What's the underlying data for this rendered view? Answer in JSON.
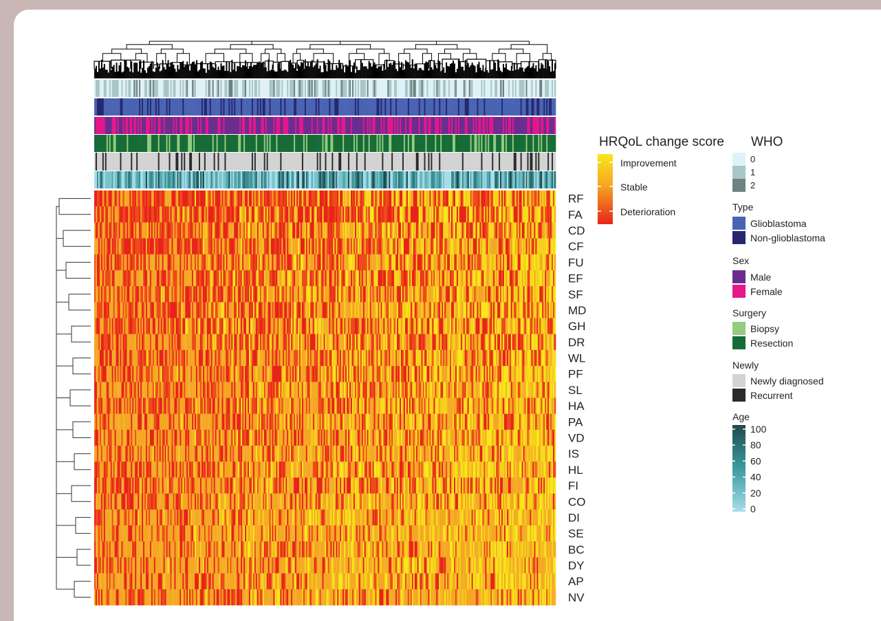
{
  "chart_data": {
    "type": "heatmap",
    "rows": [
      "RF",
      "FA",
      "CD",
      "CF",
      "FU",
      "EF",
      "SF",
      "MD",
      "GH",
      "DR",
      "WL",
      "PF",
      "SL",
      "HA",
      "PA",
      "VD",
      "IS",
      "HL",
      "FI",
      "CO",
      "DI",
      "SE",
      "BC",
      "DY",
      "AP",
      "NV"
    ],
    "n_columns": 340,
    "color_scale": {
      "title": "HRQoL change score",
      "labels": [
        "Improvement",
        "Stable",
        "Deterioration"
      ],
      "colors": [
        "#f8e71c",
        "#f5a623",
        "#e8231b"
      ]
    },
    "annotation_tracks": [
      "WHO",
      "Type",
      "Sex",
      "Surgery",
      "Newly",
      "Age"
    ],
    "row_deterioration_propensity": {
      "RF": 0.52,
      "FA": 0.58,
      "CD": 0.42,
      "CF": 0.45,
      "FU": 0.4,
      "EF": 0.44,
      "SF": 0.43,
      "MD": 0.41,
      "GH": 0.42,
      "DR": 0.4,
      "WL": 0.38,
      "PF": 0.4,
      "SL": 0.36,
      "HA": 0.34,
      "PA": 0.34,
      "VD": 0.36,
      "IS": 0.3,
      "HL": 0.3,
      "FI": 0.28,
      "CO": 0.24,
      "DI": 0.22,
      "SE": 0.2,
      "BC": 0.22,
      "DY": 0.22,
      "AP": 0.24,
      "NV": 0.24
    }
  },
  "legend": {
    "hrqol": {
      "title": "HRQoL change score",
      "items": [
        "Improvement",
        "Stable",
        "Deterioration"
      ]
    },
    "groups": [
      {
        "title": "WHO",
        "items": [
          {
            "label": "0",
            "color": "#dff2f8"
          },
          {
            "label": "1",
            "color": "#a9c6c6"
          },
          {
            "label": "2",
            "color": "#6e8381"
          }
        ]
      },
      {
        "title": "Type",
        "items": [
          {
            "label": "Glioblastoma",
            "color": "#4a64b4"
          },
          {
            "label": "Non-glioblastoma",
            "color": "#26286f"
          }
        ]
      },
      {
        "title": "Sex",
        "items": [
          {
            "label": "Male",
            "color": "#6a2d8f"
          },
          {
            "label": "Female",
            "color": "#e4178b"
          }
        ]
      },
      {
        "title": "Surgery",
        "items": [
          {
            "label": "Biopsy",
            "color": "#92cc7e"
          },
          {
            "label": "Resection",
            "color": "#166b36"
          }
        ]
      },
      {
        "title": "Newly",
        "items": [
          {
            "label": "Newly diagnosed",
            "color": "#d3d3d3"
          },
          {
            "label": "Recurrent",
            "color": "#2b2b2b"
          }
        ]
      }
    ],
    "age": {
      "title": "Age",
      "ticks": [
        "100",
        "80",
        "60",
        "40",
        "20",
        "0"
      ],
      "color_high": "#1e4a4a",
      "color_low": "#a8dcea"
    }
  }
}
